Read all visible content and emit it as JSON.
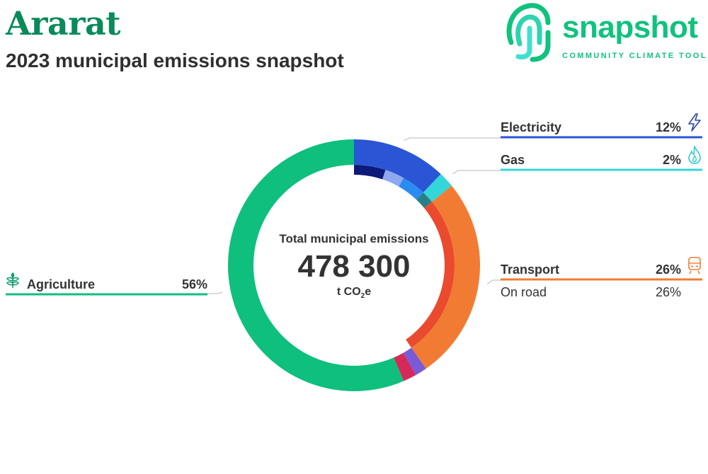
{
  "header": {
    "title": "Ararat",
    "subtitle": "2023 municipal emissions snapshot"
  },
  "logo": {
    "word": "snapshot",
    "tagline": "COMMUNITY CLIMATE TOOL"
  },
  "center": {
    "label": "Total municipal emissions",
    "value": "478 300",
    "unit_prefix": "t CO",
    "unit_sub": "2",
    "unit_suffix": "e"
  },
  "chart_data": {
    "type": "donut",
    "title": "Total municipal emissions",
    "total": 478300,
    "unit": "t CO2e",
    "series": [
      {
        "name": "Electricity",
        "percent": 12,
        "label": "12%",
        "color": "#2a55d5",
        "icon": "lightning-icon",
        "subsegments": [
          {
            "fraction": 0.42,
            "color": "#0d1a7a"
          },
          {
            "fraction": 0.26,
            "color": "#8fa8f0"
          },
          {
            "fraction": 0.32,
            "color": "#2a8cf0"
          }
        ]
      },
      {
        "name": "Gas",
        "percent": 2,
        "label": "2%",
        "color": "#33d6d9",
        "icon": "flame-icon",
        "subsegments": [
          {
            "fraction": 1.0,
            "color": "#2a7f86"
          }
        ]
      },
      {
        "name": "Transport",
        "percent": 26,
        "label": "26%",
        "color": "#f27b33",
        "icon": "train-icon",
        "subsegments": [
          {
            "fraction": 1.0,
            "color": "#ea4a2e"
          }
        ],
        "breakdown": [
          {
            "name": "On road",
            "label": "26%",
            "percent": 26
          }
        ]
      },
      {
        "name": "Other (purple)",
        "percent": 1.5,
        "color": "#7a5ad6"
      },
      {
        "name": "Other (crimson)",
        "percent": 1.7,
        "color": "#d42a5a"
      },
      {
        "name": "Agriculture",
        "percent": 56,
        "label": "56%",
        "color": "#0ebf7e",
        "icon": "sprout-icon"
      }
    ]
  }
}
